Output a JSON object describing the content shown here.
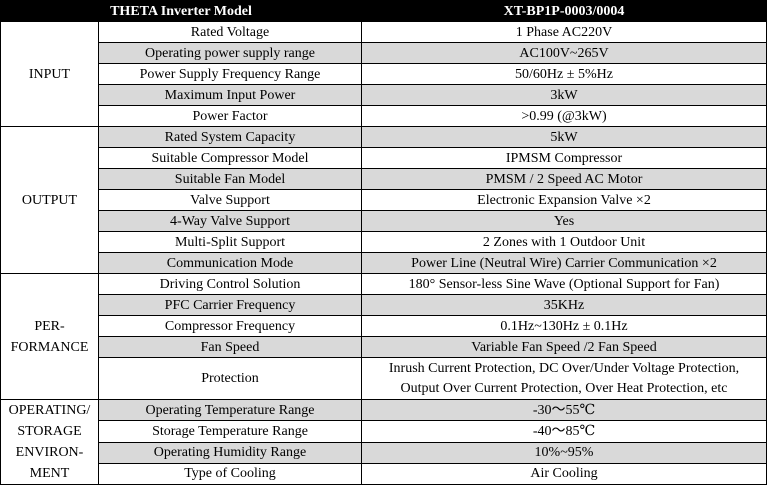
{
  "header": {
    "model_label": "THETA Inverter Model",
    "model_value": "XT-BP1P-0003/0004"
  },
  "groups": {
    "input": "INPUT",
    "output": "OUTPUT",
    "performance": [
      "PER-",
      "FORMANCE"
    ],
    "environment": [
      "OPERATING/",
      "STORAGE",
      "ENVIRON-",
      "MENT"
    ]
  },
  "rows": [
    {
      "param": "Rated Voltage",
      "value": "1 Phase AC220V"
    },
    {
      "param": "Operating power supply range",
      "value": "AC100V~265V"
    },
    {
      "param": "Power Supply Frequency Range",
      "value": "50/60Hz ± 5%Hz"
    },
    {
      "param": "Maximum Input Power",
      "value": "3kW"
    },
    {
      "param": "Power Factor",
      "value": ">0.99 (@3kW)"
    },
    {
      "param": "Rated System Capacity",
      "value": "5kW"
    },
    {
      "param": "Suitable Compressor Model",
      "value": "IPMSM Compressor"
    },
    {
      "param": "Suitable Fan Model",
      "value": "PMSM / 2 Speed AC Motor"
    },
    {
      "param": "Valve Support",
      "value": "Electronic Expansion Valve ×2"
    },
    {
      "param": "4-Way Valve Support",
      "value": "Yes"
    },
    {
      "param": "Multi-Split Support",
      "value": "2 Zones with 1 Outdoor Unit"
    },
    {
      "param": "Communication Mode",
      "value": "Power Line (Neutral Wire) Carrier Communication ×2"
    },
    {
      "param": "Driving Control Solution",
      "value": "180° Sensor-less Sine Wave (Optional Support for Fan)"
    },
    {
      "param": "PFC Carrier Frequency",
      "value": "35KHz"
    },
    {
      "param": "Compressor Frequency",
      "value": "0.1Hz~130Hz ± 0.1Hz"
    },
    {
      "param": "Fan Speed",
      "value": "Variable Fan Speed /2 Fan Speed"
    },
    {
      "param": "Protection",
      "value_lines": [
        "Inrush Current Protection, DC Over/Under Voltage Protection,",
        "Output Over Current Protection, Over Heat Protection, etc"
      ]
    },
    {
      "param": "Operating Temperature Range",
      "value": "-30～55℃"
    },
    {
      "param": "Storage Temperature Range",
      "value": "-40～85℃"
    },
    {
      "param": "Operating Humidity Range",
      "value": "10%~95%"
    },
    {
      "param": "Type of Cooling",
      "value": "Air Cooling"
    }
  ]
}
